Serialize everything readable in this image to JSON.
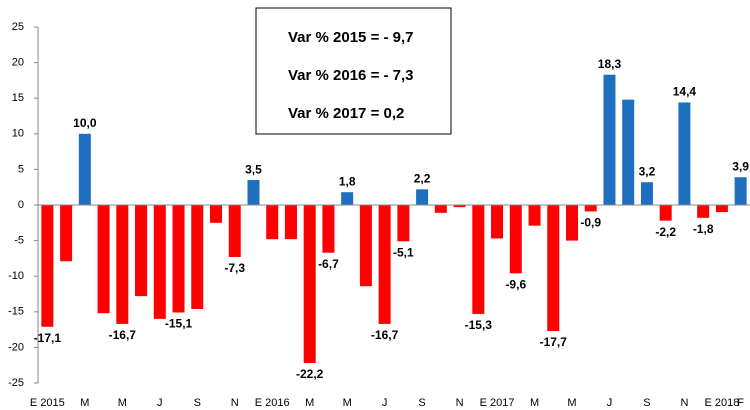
{
  "chart_data": {
    "type": "bar",
    "annotations": [
      "Var % 2015 = - 9,7",
      "Var % 2016 = - 7,3",
      "Var % 2017 =   0,2"
    ],
    "categories": [
      "E 2015",
      null,
      "M",
      null,
      "M",
      null,
      "J",
      null,
      "S",
      null,
      "N",
      null,
      "E 2016",
      null,
      "M",
      null,
      "M",
      null,
      "J",
      null,
      "S",
      null,
      "N",
      null,
      "E 2017",
      null,
      "M",
      null,
      "M",
      null,
      "J",
      null,
      "S",
      null,
      "N",
      null,
      "E 2018",
      "F"
    ],
    "values": [
      -17.1,
      -7.9,
      10.0,
      -15.2,
      -16.7,
      -12.8,
      -16.0,
      -15.1,
      -14.6,
      -2.5,
      -7.3,
      3.5,
      -4.8,
      -4.8,
      -22.2,
      -6.7,
      1.8,
      -11.4,
      -16.7,
      -5.1,
      2.2,
      -1.1,
      -0.3,
      -15.3,
      -4.7,
      -9.6,
      -2.9,
      -17.7,
      -5.0,
      -0.9,
      18.3,
      14.8,
      3.2,
      -2.2,
      14.4,
      -1.8,
      -1.0,
      3.9
    ],
    "value_labels": [
      "-17,1",
      null,
      "10,0",
      null,
      "-16,7",
      null,
      null,
      "-15,1",
      null,
      null,
      "-7,3",
      "3,5",
      null,
      null,
      "-22,2",
      "-6,7",
      "1,8",
      null,
      "-16,7",
      "-5,1",
      "2,2",
      null,
      null,
      "-15,3",
      null,
      "-9,6",
      null,
      "-17,7",
      null,
      "-0,9",
      "18,3",
      null,
      "3,2",
      "-2,2",
      "14,4",
      "-1,8",
      null,
      "3,9"
    ],
    "color": "#ff0000",
    "positive_color": "#1f6fc0",
    "ylim": [
      -25,
      25
    ],
    "yticks": [
      -25,
      -20,
      -15,
      -10,
      -5,
      0,
      5,
      10,
      15,
      20,
      25
    ],
    "grid": false
  }
}
